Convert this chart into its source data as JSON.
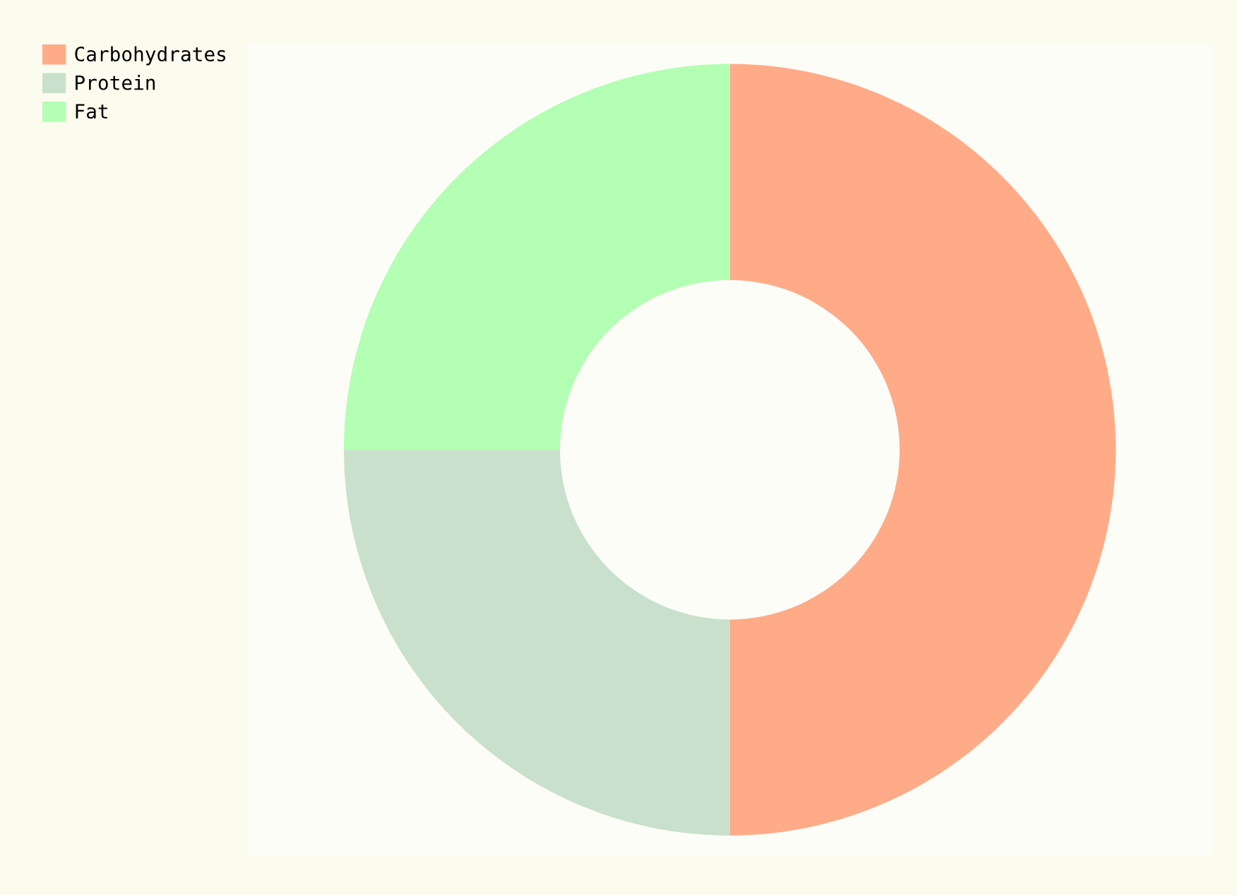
{
  "chart_data": {
    "type": "donut",
    "categories": [
      "Carbohydrates",
      "Protein",
      "Fat"
    ],
    "values": [
      50,
      25,
      25
    ],
    "colors": [
      "#ffab88",
      "#c8e0cc",
      "#b3ffb3"
    ],
    "legend": "top left"
  }
}
